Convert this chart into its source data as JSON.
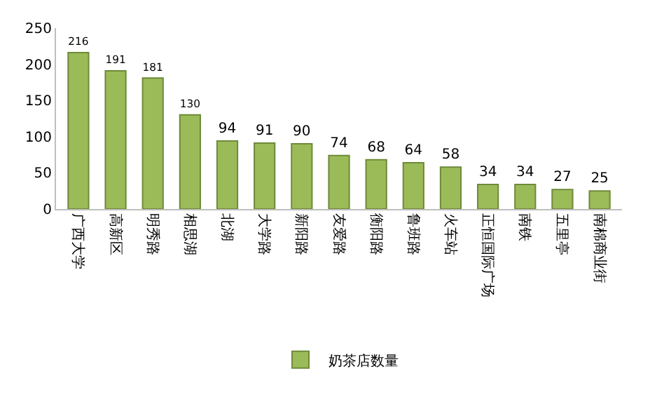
{
  "chart_data": {
    "type": "bar",
    "categories": [
      "广西大学",
      "高新区",
      "明秀路",
      "相思湖",
      "北湖",
      "大学路",
      "新阳路",
      "友爱路",
      "衡阳路",
      "鲁班路",
      "火车站",
      "正恒国际广场",
      "南铁",
      "五里亭",
      "南棉商业街"
    ],
    "series": [
      {
        "name": "奶茶店数量",
        "color": "#9bbb59",
        "values": [
          216,
          191,
          181,
          130,
          94,
          91,
          90,
          74,
          68,
          64,
          58,
          34,
          34,
          27,
          25
        ]
      }
    ],
    "ylim": [
      0,
      250
    ],
    "yticks": [
      0,
      50,
      100,
      150,
      200,
      250
    ],
    "data_labels": true,
    "legend": "bottom"
  }
}
